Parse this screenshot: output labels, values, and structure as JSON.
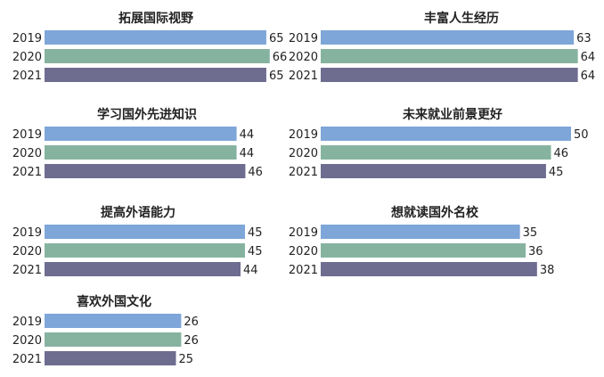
{
  "chart_data": [
    {
      "type": "bar",
      "orientation": "horizontal",
      "title": "拓展国际视野",
      "categories": [
        "2019",
        "2020",
        "2021"
      ],
      "values": [
        65,
        66,
        65
      ]
    },
    {
      "type": "bar",
      "orientation": "horizontal",
      "title": "丰富人生经历",
      "categories": [
        "2019",
        "2020",
        "2021"
      ],
      "values": [
        63,
        64,
        64
      ]
    },
    {
      "type": "bar",
      "orientation": "horizontal",
      "title": "学习国外先进知识",
      "categories": [
        "2019",
        "2020",
        "2021"
      ],
      "values": [
        44,
        44,
        46
      ]
    },
    {
      "type": "bar",
      "orientation": "horizontal",
      "title": "未来就业前景更好",
      "categories": [
        "2019",
        "2020",
        "2021"
      ],
      "values": [
        50,
        46,
        45
      ]
    },
    {
      "type": "bar",
      "orientation": "horizontal",
      "title": "提高外语能力",
      "categories": [
        "2019",
        "2020",
        "2021"
      ],
      "values": [
        45,
        45,
        44
      ]
    },
    {
      "type": "bar",
      "orientation": "horizontal",
      "title": "想就读国外名校",
      "categories": [
        "2019",
        "2020",
        "2021"
      ],
      "values": [
        35,
        36,
        38
      ]
    },
    {
      "type": "bar",
      "orientation": "horizontal",
      "title": "喜欢外国文化",
      "categories": [
        "2019",
        "2020",
        "2021"
      ],
      "values": [
        26,
        26,
        25
      ]
    }
  ],
  "colors": {
    "2019": "#7ea6d8",
    "2020": "#86b3a0",
    "2021": "#6e6c8f"
  }
}
